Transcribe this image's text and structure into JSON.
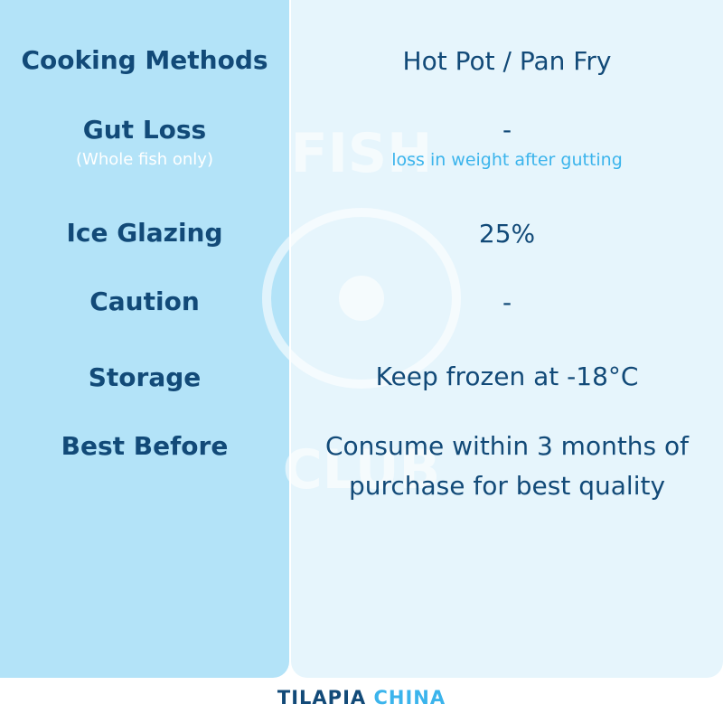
{
  "rows": [
    {
      "label": "Cooking Methods",
      "value": "Hot Pot / Pan Fry"
    },
    {
      "label": "Gut Loss",
      "sublabel": "(Whole fish only)",
      "value": "-",
      "subvalue": "loss in weight after gutting"
    },
    {
      "label": "Ice Glazing",
      "value": "25%"
    },
    {
      "label": "Caution",
      "value": "-"
    },
    {
      "label": "Storage",
      "value": "Keep frozen at -18°C"
    },
    {
      "label": "Best Before",
      "value": "Consume within 3 months of purchase for best quality"
    }
  ],
  "footer": {
    "brand": "TILAPIA",
    "brand2": "CHINA"
  },
  "watermark": {
    "top": "FISH",
    "bottom": "CLUB"
  }
}
